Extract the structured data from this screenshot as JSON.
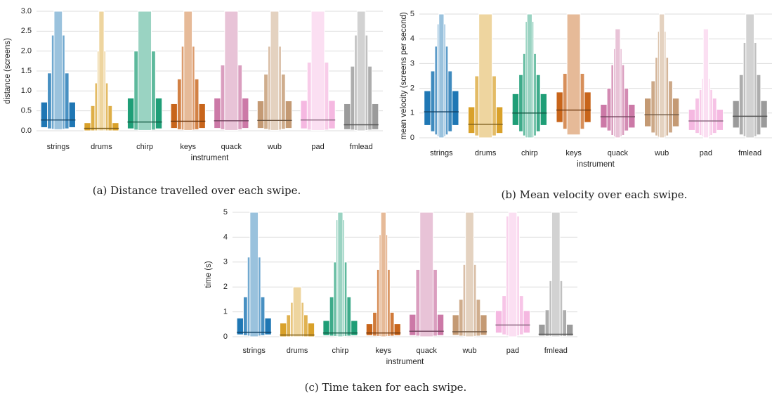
{
  "colors": {
    "strings": "#1f77b4",
    "drums": "#d9a12a",
    "chirp": "#1f9e77",
    "keys": "#c8651b",
    "quack": "#cc79a7",
    "wub": "#c49a74",
    "pad": "#f5b8e1",
    "fmlead": "#9b9b9b"
  },
  "chart_data": [
    {
      "type": "boxen",
      "caption": "(a) Distance travelled over each swipe.",
      "xlabel": "instrument",
      "ylabel": "distance (screens)",
      "ylim": [
        0,
        3.0
      ],
      "yticks": [
        "0.0",
        "0.5",
        "1.0",
        "1.5",
        "2.0",
        "2.5",
        "3.0"
      ],
      "grid": true,
      "categories": [
        "strings",
        "drums",
        "chirp",
        "keys",
        "quack",
        "wub",
        "pad",
        "fmlead"
      ],
      "median": [
        0.27,
        0.06,
        0.22,
        0.24,
        0.25,
        0.26,
        0.27,
        0.15
      ],
      "boxes": [
        [
          [
            0.08,
            0.72
          ],
          [
            0.05,
            1.45
          ],
          [
            0.04,
            2.4
          ],
          [
            0.03,
            3.0
          ]
        ],
        [
          [
            0.0,
            0.2
          ],
          [
            0.0,
            0.63
          ],
          [
            0.0,
            1.2
          ],
          [
            0.0,
            2.0
          ],
          [
            0.0,
            3.0
          ]
        ],
        [
          [
            0.05,
            0.82
          ],
          [
            0.02,
            2.0
          ],
          [
            0.01,
            3.0
          ]
        ],
        [
          [
            0.06,
            0.68
          ],
          [
            0.03,
            1.3
          ],
          [
            0.02,
            2.12
          ],
          [
            0.01,
            3.0
          ]
        ],
        [
          [
            0.06,
            0.82
          ],
          [
            0.03,
            1.65
          ],
          [
            0.01,
            3.0
          ]
        ],
        [
          [
            0.06,
            0.75
          ],
          [
            0.04,
            1.42
          ],
          [
            0.02,
            2.12
          ],
          [
            0.01,
            3.0
          ]
        ],
        [
          [
            0.05,
            0.76
          ],
          [
            0.02,
            1.72
          ],
          [
            0.01,
            3.0
          ]
        ],
        [
          [
            0.03,
            0.68
          ],
          [
            0.02,
            1.62
          ],
          [
            0.01,
            2.4
          ],
          [
            0.0,
            3.0
          ]
        ]
      ]
    },
    {
      "type": "boxen",
      "caption": "(b) Mean velocity over each swipe.",
      "xlabel": "instrument",
      "ylabel": "mean velocity (screens per second)",
      "ylim": [
        0,
        5
      ],
      "yticks": [
        "0",
        "1",
        "2",
        "3",
        "4",
        "5"
      ],
      "grid": true,
      "categories": [
        "strings",
        "drums",
        "chirp",
        "keys",
        "quack",
        "wub",
        "pad",
        "fmlead"
      ],
      "median": [
        1.05,
        0.55,
        1.0,
        1.12,
        0.85,
        0.93,
        0.68,
        0.87
      ],
      "boxes": [
        [
          [
            0.5,
            1.9
          ],
          [
            0.25,
            2.7
          ],
          [
            0.12,
            3.7
          ],
          [
            0.05,
            4.6
          ],
          [
            0.0,
            5.0
          ]
        ],
        [
          [
            0.18,
            1.25
          ],
          [
            0.08,
            2.5
          ],
          [
            0.0,
            5.0
          ]
        ],
        [
          [
            0.5,
            1.78
          ],
          [
            0.25,
            2.55
          ],
          [
            0.08,
            3.4
          ],
          [
            0.0,
            4.7
          ],
          [
            0.0,
            5.0
          ]
        ],
        [
          [
            0.62,
            1.85
          ],
          [
            0.35,
            2.6
          ],
          [
            0.12,
            5.0
          ]
        ],
        [
          [
            0.4,
            1.35
          ],
          [
            0.28,
            2.0
          ],
          [
            0.1,
            2.95
          ],
          [
            0.05,
            3.6
          ],
          [
            0.0,
            4.4
          ]
        ],
        [
          [
            0.45,
            1.6
          ],
          [
            0.2,
            2.3
          ],
          [
            0.08,
            3.25
          ],
          [
            0.03,
            4.3
          ],
          [
            0.0,
            5.0
          ]
        ],
        [
          [
            0.3,
            1.15
          ],
          [
            0.18,
            1.6
          ],
          [
            0.1,
            1.95
          ],
          [
            0.05,
            2.4
          ],
          [
            0.0,
            4.4
          ]
        ],
        [
          [
            0.4,
            1.5
          ],
          [
            0.12,
            2.55
          ],
          [
            0.05,
            3.85
          ],
          [
            0.0,
            5.0
          ]
        ]
      ]
    },
    {
      "type": "boxen",
      "caption": "(c) Time taken for each swipe.",
      "xlabel": "instrument",
      "ylabel": "time (s)",
      "ylim": [
        0,
        5
      ],
      "yticks": [
        "0",
        "1",
        "2",
        "3",
        "4",
        "5"
      ],
      "grid": true,
      "categories": [
        "strings",
        "drums",
        "chirp",
        "keys",
        "quack",
        "wub",
        "pad",
        "fmlead"
      ],
      "median": [
        0.18,
        0.07,
        0.15,
        0.15,
        0.22,
        0.2,
        0.47,
        0.1
      ],
      "boxes": [
        [
          [
            0.08,
            0.75
          ],
          [
            0.05,
            1.6
          ],
          [
            0.03,
            3.2
          ],
          [
            0.0,
            5.0
          ]
        ],
        [
          [
            0.0,
            0.55
          ],
          [
            0.0,
            0.88
          ],
          [
            0.0,
            1.38
          ],
          [
            0.0,
            2.0
          ]
        ],
        [
          [
            0.05,
            0.65
          ],
          [
            0.03,
            1.6
          ],
          [
            0.02,
            3.0
          ],
          [
            0.01,
            4.7
          ],
          [
            0.0,
            5.0
          ]
        ],
        [
          [
            0.05,
            0.52
          ],
          [
            0.03,
            0.98
          ],
          [
            0.02,
            2.7
          ],
          [
            0.01,
            4.1
          ],
          [
            0.0,
            5.0
          ]
        ],
        [
          [
            0.05,
            0.9
          ],
          [
            0.03,
            2.7
          ],
          [
            0.0,
            5.0
          ]
        ],
        [
          [
            0.06,
            0.88
          ],
          [
            0.03,
            1.5
          ],
          [
            0.02,
            2.9
          ],
          [
            0.0,
            5.0
          ]
        ],
        [
          [
            0.15,
            1.05
          ],
          [
            0.08,
            1.65
          ],
          [
            0.04,
            4.85
          ],
          [
            0.0,
            5.0
          ]
        ],
        [
          [
            0.03,
            0.5
          ],
          [
            0.02,
            1.08
          ],
          [
            0.01,
            2.25
          ],
          [
            0.0,
            5.0
          ]
        ]
      ]
    }
  ]
}
